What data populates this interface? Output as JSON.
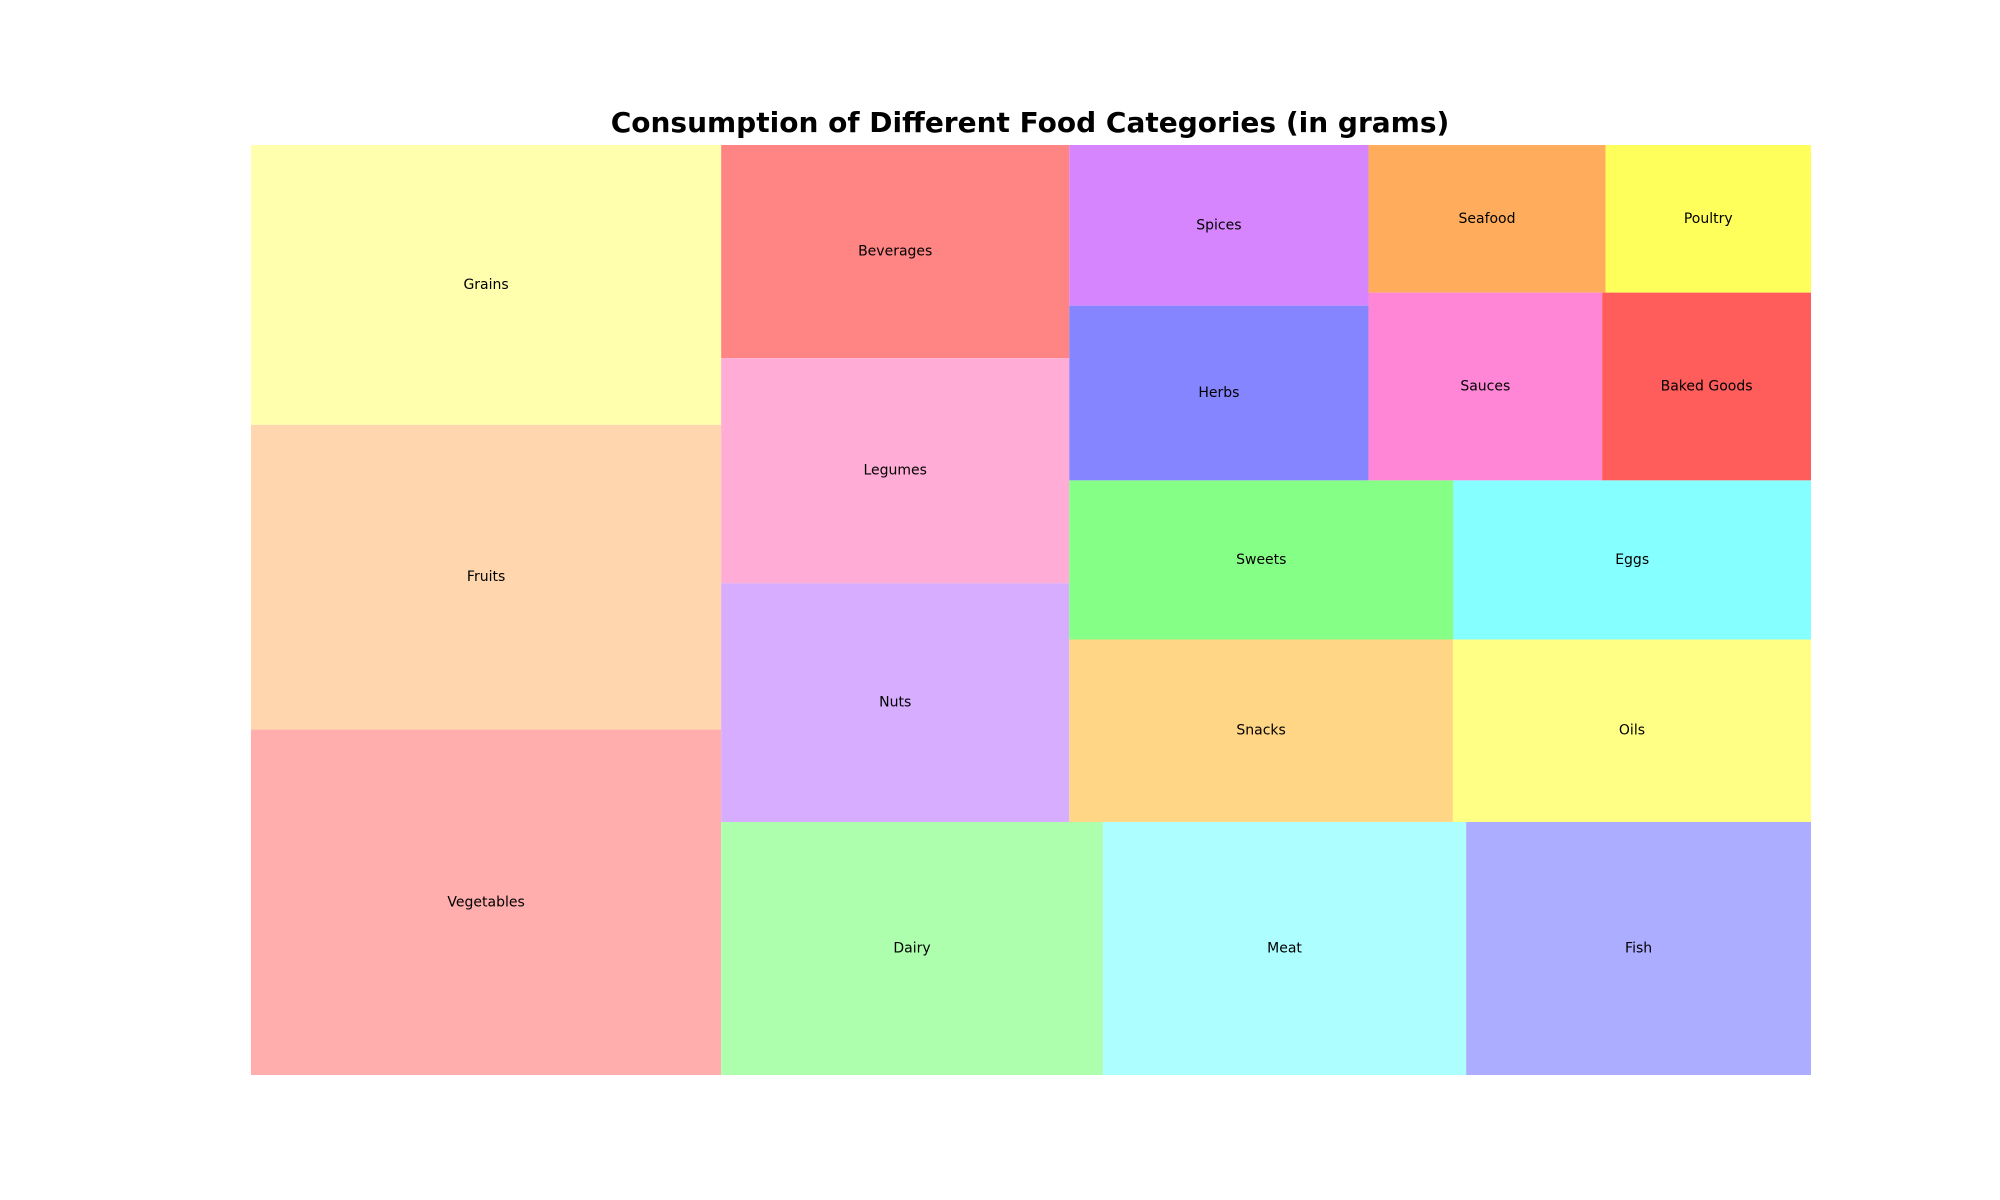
{
  "chart_data": {
    "type": "treemap",
    "title": "Consumption of Different Food Categories (in grams)",
    "series": [
      {
        "label": "Vegetables",
        "value": 348,
        "color": "#ffadad"
      },
      {
        "label": "Fruits",
        "value": 307,
        "color": "#ffd6ad"
      },
      {
        "label": "Grains",
        "value": 282,
        "color": "#ffffad"
      },
      {
        "label": "Dairy",
        "value": 207,
        "color": "#adffad"
      },
      {
        "label": "Meat",
        "value": 197,
        "color": "#adffff"
      },
      {
        "label": "Fish",
        "value": 187,
        "color": "#adadff"
      },
      {
        "label": "Nuts",
        "value": 178,
        "color": "#d6adff"
      },
      {
        "label": "Legumes",
        "value": 168,
        "color": "#ffadd6"
      },
      {
        "label": "Beverages",
        "value": 159,
        "color": "#ff8585"
      },
      {
        "label": "Snacks",
        "value": 150,
        "color": "#ffd685"
      },
      {
        "label": "Oils",
        "value": 140,
        "color": "#ffff85"
      },
      {
        "label": "Sweets",
        "value": 131,
        "color": "#85ff85"
      },
      {
        "label": "Eggs",
        "value": 122,
        "color": "#85ffff"
      },
      {
        "label": "Herbs",
        "value": 112,
        "color": "#8585ff"
      },
      {
        "label": "Spices",
        "value": 103,
        "color": "#d685ff"
      },
      {
        "label": "Sauces",
        "value": 94,
        "color": "#ff85d6"
      },
      {
        "label": "Baked Goods",
        "value": 84,
        "color": "#ff5c5c"
      },
      {
        "label": "Seafood",
        "value": 75,
        "color": "#ffad5c"
      },
      {
        "label": "Poultry",
        "value": 65,
        "color": "#ffff5c"
      }
    ]
  }
}
